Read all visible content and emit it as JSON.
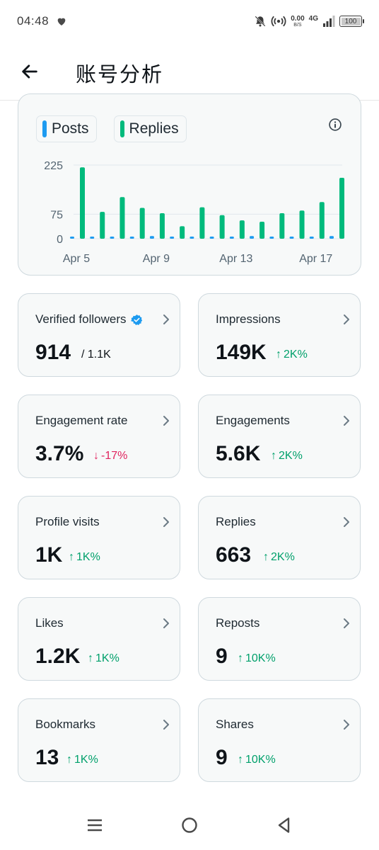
{
  "status_bar": {
    "time": "04:48",
    "net_speed": "0.00",
    "net_speed_unit": "B/S",
    "network": "4G",
    "battery": "100",
    "icons": [
      "heart-icon",
      "bell-off-icon",
      "hotspot-icon",
      "signal-icon"
    ]
  },
  "header": {
    "title": "账号分析",
    "back_icon": "arrow-left-icon"
  },
  "chart_data": {
    "type": "bar",
    "categories": [
      "Apr 5",
      "Apr 6",
      "Apr 7",
      "Apr 8",
      "Apr 9",
      "Apr 10",
      "Apr 11",
      "Apr 12",
      "Apr 13",
      "Apr 14",
      "Apr 15",
      "Apr 16",
      "Apr 17",
      "Apr 18"
    ],
    "x_tick_labels": [
      "Apr 5",
      "Apr 9",
      "Apr 13",
      "Apr 17"
    ],
    "y_tick_labels": [
      "225",
      "75",
      "0"
    ],
    "y_ticks": [
      225,
      75,
      0
    ],
    "ylim": [
      0,
      240
    ],
    "series": [
      {
        "name": "Posts",
        "color": "#1d9bf0",
        "values": [
          5,
          5,
          5,
          5,
          8,
          5,
          5,
          5,
          5,
          8,
          5,
          5,
          5,
          8
        ]
      },
      {
        "name": "Replies",
        "color": "#00ba7c",
        "values": [
          218,
          82,
          127,
          94,
          78,
          38,
          96,
          72,
          56,
          52,
          78,
          86,
          112,
          186
        ]
      }
    ],
    "grid": true,
    "legend": "top-left",
    "title": "",
    "xlabel": "",
    "ylabel": ""
  },
  "chart_info_icon": "info-icon",
  "metrics": [
    {
      "label": "Verified followers",
      "value": "914",
      "sub": "/ 1.1K",
      "verified": true
    },
    {
      "label": "Impressions",
      "value": "149K",
      "delta": "2K%",
      "direction": "up"
    },
    {
      "label": "Engagement rate",
      "value": "3.7%",
      "delta": "-17%",
      "direction": "down"
    },
    {
      "label": "Engagements",
      "value": "5.6K",
      "delta": "2K%",
      "direction": "up"
    },
    {
      "label": "Profile visits",
      "value": "1K",
      "delta": "1K%",
      "direction": "up"
    },
    {
      "label": "Replies",
      "value": "663",
      "delta": "2K%",
      "direction": "up"
    },
    {
      "label": "Likes",
      "value": "1.2K",
      "delta": "1K%",
      "direction": "up"
    },
    {
      "label": "Reposts",
      "value": "9",
      "delta": "10K%",
      "direction": "up"
    },
    {
      "label": "Bookmarks",
      "value": "13",
      "delta": "1K%",
      "direction": "up"
    },
    {
      "label": "Shares",
      "value": "9",
      "delta": "10K%",
      "direction": "up"
    }
  ],
  "colors": {
    "up": "#00a06b",
    "down": "#e0245e",
    "accent": "#1d9bf0",
    "replies": "#00ba7c"
  },
  "nav_bar": {
    "buttons": [
      "menu-icon",
      "home-circle-icon",
      "back-triangle-icon"
    ]
  }
}
